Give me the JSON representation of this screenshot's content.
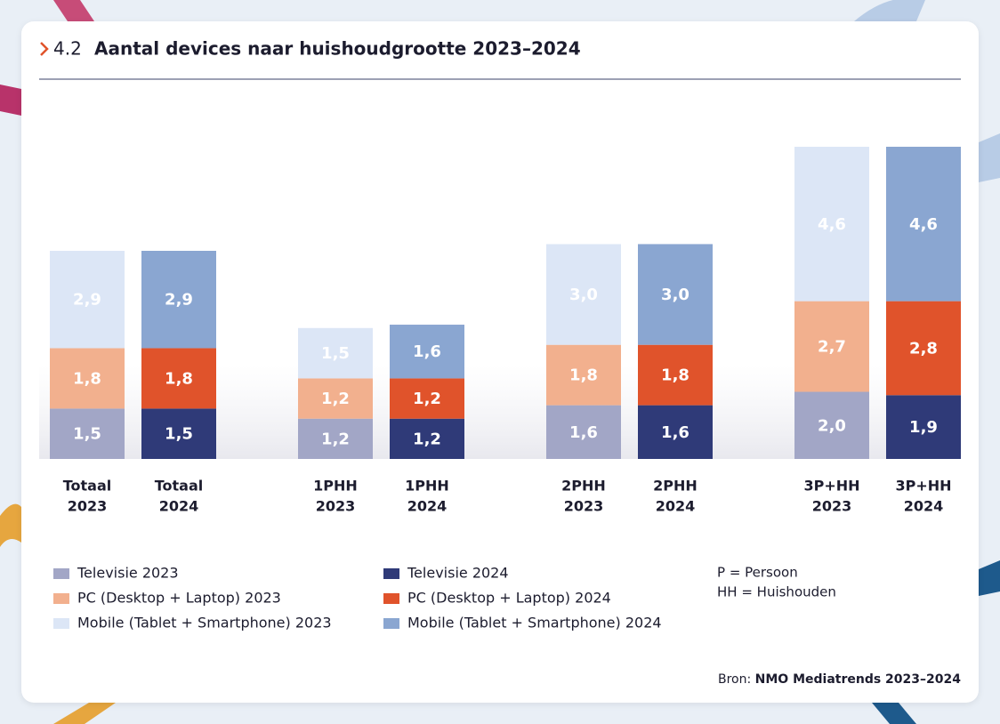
{
  "header": {
    "number": "4.2",
    "title": "Aantal devices naar huishoudgrootte 2023–2024"
  },
  "chart_data": {
    "type": "stacked-bar",
    "categories": [
      [
        "Totaal",
        "2023"
      ],
      [
        "Totaal",
        "2024"
      ],
      [
        "1PHH",
        "2023"
      ],
      [
        "1PHH",
        "2024"
      ],
      [
        "2PHH",
        "2023"
      ],
      [
        "2PHH",
        "2024"
      ],
      [
        "3P+HH",
        "2023"
      ],
      [
        "3P+HH",
        "2024"
      ]
    ],
    "series": [
      {
        "name": "Televisie 2023",
        "color": "#a2a6c6",
        "values": [
          1.5,
          null,
          1.2,
          null,
          1.6,
          null,
          2.0,
          null
        ],
        "value_labels": [
          "1,5",
          null,
          "1,2",
          null,
          "1,6",
          null,
          "2,0",
          null
        ]
      },
      {
        "name": "PC (Desktop + Laptop) 2023",
        "color": "#f2b08e",
        "values": [
          1.8,
          null,
          1.2,
          null,
          1.8,
          null,
          2.7,
          null
        ],
        "value_labels": [
          "1,8",
          null,
          "1,2",
          null,
          "1,8",
          null,
          "2,7",
          null
        ]
      },
      {
        "name": "Mobile (Tablet + Smartphone) 2023",
        "color": "#dce6f6",
        "values": [
          2.9,
          null,
          1.5,
          null,
          3.0,
          null,
          4.6,
          null
        ],
        "value_labels": [
          "2,9",
          null,
          "1,5",
          null,
          "3,0",
          null,
          "4,6",
          null
        ]
      },
      {
        "name": "Televisie 2024",
        "color": "#2f3a78",
        "values": [
          null,
          1.5,
          null,
          1.2,
          null,
          1.6,
          null,
          1.9
        ],
        "value_labels": [
          null,
          "1,5",
          null,
          "1,2",
          null,
          "1,6",
          null,
          "1,9"
        ]
      },
      {
        "name": "PC (Desktop + Laptop) 2024",
        "color": "#e0532b",
        "values": [
          null,
          1.8,
          null,
          1.2,
          null,
          1.8,
          null,
          2.8
        ],
        "value_labels": [
          null,
          "1,8",
          null,
          "1,2",
          null,
          "1,8",
          null,
          "2,8"
        ]
      },
      {
        "name": "Mobile (Tablet + Smartphone) 2024",
        "color": "#8aa6d1",
        "values": [
          null,
          2.9,
          null,
          1.6,
          null,
          3.0,
          null,
          4.6
        ],
        "value_labels": [
          null,
          "2,9",
          null,
          "1,6",
          null,
          "3,0",
          null,
          "4,6"
        ]
      }
    ]
  },
  "notes": [
    "P = Persoon",
    "HH = Huishouden"
  ],
  "source": {
    "label": "Bron:",
    "text": "NMO Mediatrends 2023–2024"
  }
}
